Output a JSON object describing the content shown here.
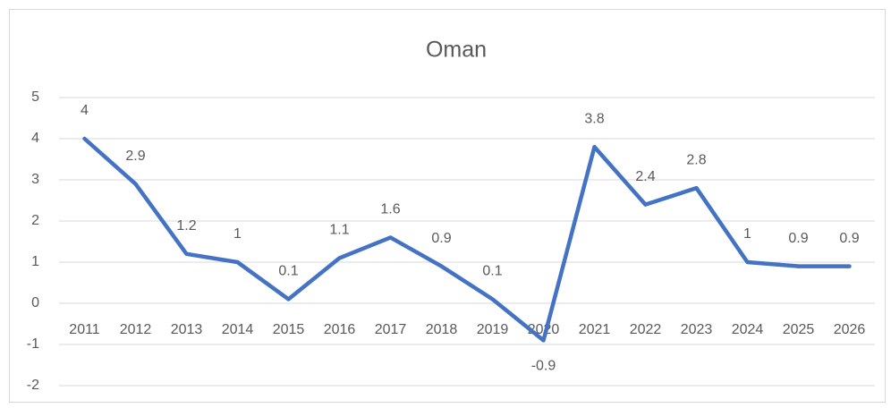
{
  "chart_data": {
    "type": "line",
    "title": "Oman",
    "categories": [
      "2011",
      "2012",
      "2013",
      "2014",
      "2015",
      "2016",
      "2017",
      "2018",
      "2019",
      "2020",
      "2021",
      "2022",
      "2023",
      "2024",
      "2025",
      "2026"
    ],
    "series": [
      {
        "name": "Oman",
        "color": "#4472c4",
        "values": [
          4,
          2.9,
          1.2,
          1,
          0.1,
          1.1,
          1.6,
          0.9,
          0.1,
          -0.9,
          3.8,
          2.4,
          2.8,
          1,
          0.9,
          0.9
        ]
      }
    ],
    "ylim": [
      -2,
      5
    ],
    "yticks": [
      -2,
      -1,
      0,
      1,
      2,
      3,
      4,
      5
    ],
    "grid": true,
    "data_labels": true
  }
}
